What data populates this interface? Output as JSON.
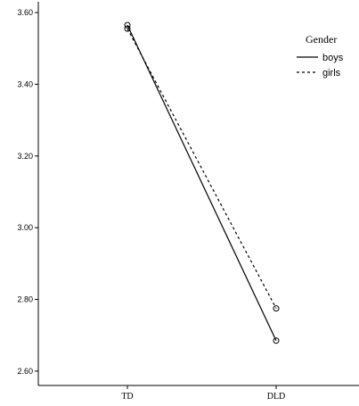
{
  "chart_data": {
    "type": "line",
    "categories": [
      "TD",
      "DLD"
    ],
    "ylim": [
      2.56,
      3.63
    ],
    "yticks": [
      "2.60",
      "2.80",
      "3.00",
      "3.20",
      "3.40",
      "3.60"
    ],
    "grid": false,
    "legend": {
      "title": "Gender",
      "placement": "top-right"
    },
    "series": [
      {
        "name": "boys",
        "values": [
          3.565,
          2.685
        ],
        "style": "solid"
      },
      {
        "name": "girls",
        "values": [
          3.555,
          2.775
        ],
        "style": "dotted"
      }
    ]
  }
}
